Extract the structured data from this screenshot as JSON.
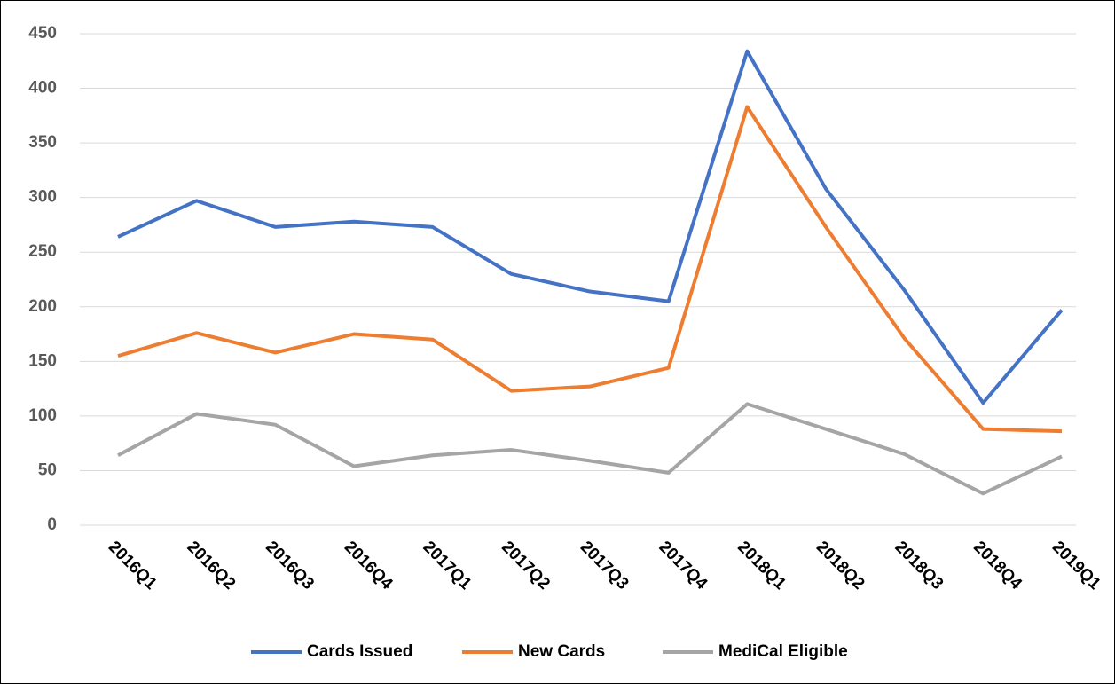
{
  "chart_data": {
    "type": "line",
    "categories": [
      "2016Q1",
      "2016Q2",
      "2016Q3",
      "2016Q4",
      "2017Q1",
      "2017Q2",
      "2017Q3",
      "2017Q4",
      "2018Q1",
      "2018Q2",
      "2018Q3",
      "2018Q4",
      "2019Q1"
    ],
    "series": [
      {
        "name": "Cards Issued",
        "color": "#4472c4",
        "values": [
          264,
          297,
          273,
          278,
          273,
          230,
          214,
          205,
          434,
          308,
          215,
          112,
          197
        ]
      },
      {
        "name": "New Cards",
        "color": "#ed7d31",
        "values": [
          155,
          176,
          158,
          175,
          170,
          123,
          127,
          144,
          383,
          273,
          171,
          88,
          86
        ]
      },
      {
        "name": "MediCal Eligible",
        "color": "#a5a5a5",
        "values": [
          64,
          102,
          92,
          54,
          64,
          69,
          59,
          48,
          111,
          88,
          65,
          29,
          63
        ]
      }
    ],
    "ylim": [
      0,
      450
    ],
    "yticks": [
      0,
      50,
      100,
      150,
      200,
      250,
      300,
      350,
      400,
      450
    ],
    "grid": true,
    "legend": "bottom"
  }
}
